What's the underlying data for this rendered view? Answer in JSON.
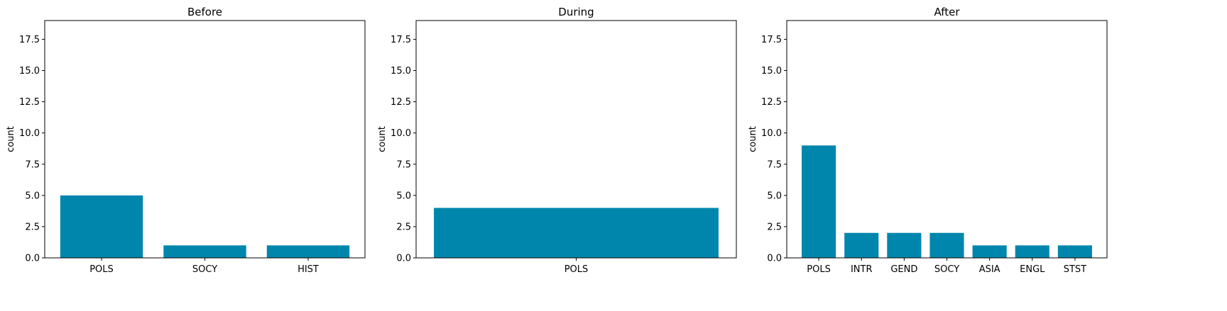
{
  "colors": {
    "bar": "#0086ad",
    "axis": "#000000",
    "background": "#ffffff"
  },
  "chart_data": [
    {
      "type": "bar",
      "title": "Before",
      "xlabel": "",
      "ylabel": "count",
      "ylim": [
        0,
        19
      ],
      "yticks": [
        "0.0",
        "2.5",
        "5.0",
        "7.5",
        "10.0",
        "12.5",
        "15.0",
        "17.5"
      ],
      "categories": [
        "POLS",
        "SOCY",
        "HIST"
      ],
      "values": [
        5,
        1,
        1
      ],
      "grid": false
    },
    {
      "type": "bar",
      "title": "During",
      "xlabel": "",
      "ylabel": "count",
      "ylim": [
        0,
        19
      ],
      "yticks": [
        "0.0",
        "2.5",
        "5.0",
        "7.5",
        "10.0",
        "12.5",
        "15.0",
        "17.5"
      ],
      "categories": [
        "POLS"
      ],
      "values": [
        4
      ],
      "grid": false
    },
    {
      "type": "bar",
      "title": "After",
      "xlabel": "",
      "ylabel": "count",
      "ylim": [
        0,
        19
      ],
      "yticks": [
        "0.0",
        "2.5",
        "5.0",
        "7.5",
        "10.0",
        "12.5",
        "15.0",
        "17.5"
      ],
      "categories": [
        "POLS",
        "INTR",
        "GEND",
        "SOCY",
        "ASIA",
        "ENGL",
        "STST"
      ],
      "values": [
        9,
        2,
        2,
        2,
        1,
        1,
        1
      ],
      "grid": false
    }
  ]
}
